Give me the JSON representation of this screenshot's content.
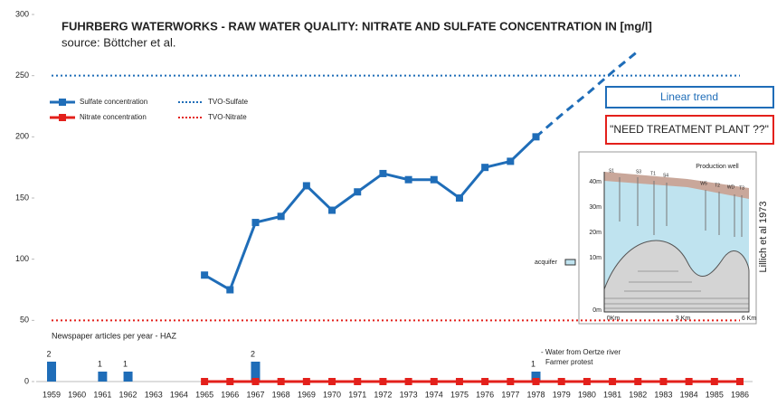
{
  "chart_data": {
    "type": "line",
    "title": "FUHRBERG WATERWORKS - RAW WATER QUALITY: NITRATE AND SULFATE CONCENTRATION IN [mg/l]",
    "subtitle": "source:  Böttcher et al.",
    "categories": [
      "1959",
      "1960",
      "1961",
      "1962",
      "1963",
      "1964",
      "1965",
      "1966",
      "1967",
      "1968",
      "1969",
      "1970",
      "1971",
      "1972",
      "1973",
      "1974",
      "1975",
      "1976",
      "1977",
      "1978",
      "1979",
      "1980",
      "1981",
      "1982",
      "1983",
      "1984",
      "1985",
      "1986"
    ],
    "ylim": [
      0,
      300
    ],
    "yticks": [
      0,
      50,
      100,
      150,
      200,
      250,
      300
    ],
    "legend": "upper left",
    "series": [
      {
        "name": "Sulfate concentration",
        "color": "#1f6db8",
        "values": [
          null,
          null,
          null,
          null,
          null,
          null,
          87,
          75,
          130,
          135,
          160,
          140,
          155,
          170,
          165,
          165,
          150,
          175,
          180,
          200,
          null,
          null,
          null,
          null,
          null,
          null,
          null,
          null
        ]
      },
      {
        "name": "Nitrate concentration",
        "color": "#e3201b",
        "values": [
          null,
          null,
          null,
          null,
          null,
          null,
          0,
          0,
          0,
          0,
          0,
          0,
          0,
          0,
          0,
          0,
          0,
          0,
          0,
          0,
          0,
          0,
          0,
          0,
          0,
          0,
          0,
          0
        ]
      }
    ],
    "reference_lines": [
      {
        "name": "TVO-Sulfate",
        "value": 250,
        "color": "#1f6db8"
      },
      {
        "name": "TVO-Nitrate",
        "value": 50,
        "color": "#e3201b"
      }
    ],
    "trend": {
      "label": "Linear trend",
      "color": "#1f6db8",
      "values": [
        null,
        null,
        null,
        null,
        null,
        null,
        null,
        null,
        null,
        null,
        null,
        null,
        null,
        null,
        null,
        null,
        null,
        null,
        null,
        200,
        218,
        235,
        253,
        270,
        null,
        null,
        null,
        null
      ]
    },
    "articles": {
      "label": "Newspaper articles per year - HAZ",
      "color": "#1f6db8",
      "values": [
        2,
        null,
        1,
        1,
        null,
        null,
        null,
        null,
        2,
        null,
        null,
        null,
        null,
        null,
        null,
        null,
        null,
        null,
        null,
        1,
        null,
        null,
        null,
        null,
        null,
        null,
        null,
        null
      ]
    },
    "annotations": [
      "- Water from Oertze river",
      "Farmer protest"
    ],
    "callout": "\"NEED TREATMENT PLANT ??\""
  },
  "inset": {
    "caption": "Lillich et al 1973",
    "legend": "acquifer",
    "well_label": "Production well",
    "well_names": [
      "S1",
      "S3",
      "T1",
      "S4",
      "W5",
      "T2",
      "WD",
      "T3"
    ],
    "depth_labels": [
      "40m",
      "30m",
      "20m",
      "10m",
      "0m"
    ],
    "distance_labels": [
      "0Km",
      "3 Km",
      "6 Km"
    ]
  }
}
